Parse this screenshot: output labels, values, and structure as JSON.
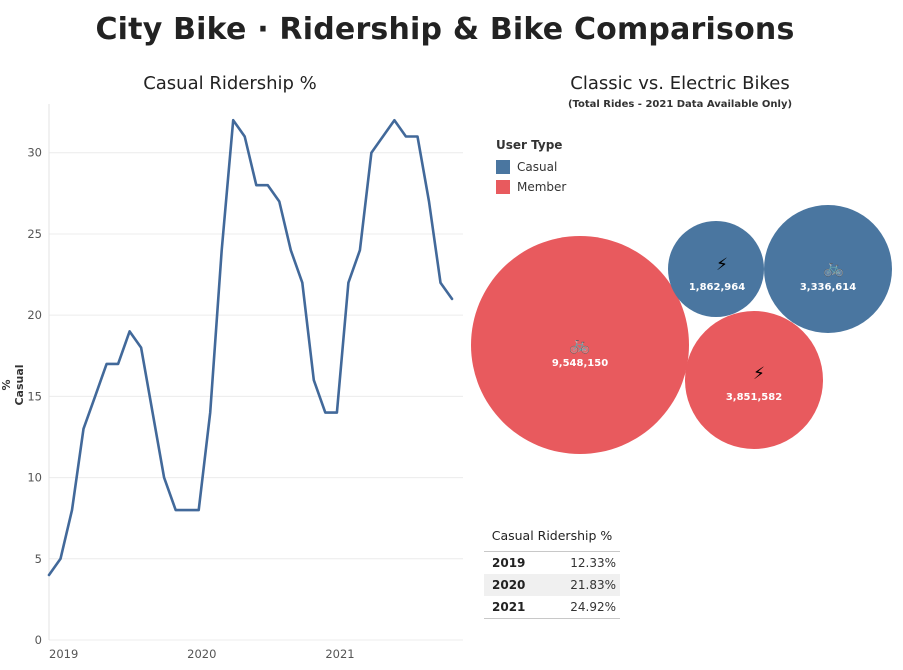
{
  "page": {
    "title": "City Bike · Ridership & Bike Comparisons"
  },
  "colors": {
    "casual": "#4a76a0",
    "member": "#e85a5e",
    "line": "#42699a",
    "grid": "#ececec"
  },
  "chart_data": [
    {
      "type": "line",
      "title": "Casual Ridership %",
      "ylabel": "% Casual",
      "xlabel": "",
      "ylim": [
        0,
        33
      ],
      "yticks": [
        0,
        5,
        10,
        15,
        20,
        25,
        30
      ],
      "xtick_labels": [
        "2019",
        "2020",
        "2021"
      ],
      "grid": true,
      "series": [
        {
          "x": [
            "2019-01",
            "2019-02",
            "2019-03",
            "2019-04",
            "2019-05",
            "2019-06",
            "2019-07",
            "2019-08",
            "2019-09",
            "2019-10",
            "2019-11",
            "2019-12",
            "2020-01",
            "2020-02",
            "2020-03",
            "2020-04",
            "2020-05",
            "2020-06",
            "2020-07",
            "2020-08",
            "2020-09",
            "2020-10",
            "2020-11",
            "2020-12",
            "2021-01",
            "2021-02",
            "2021-03",
            "2021-04",
            "2021-05",
            "2021-06",
            "2021-07",
            "2021-08",
            "2021-09",
            "2021-10",
            "2021-11",
            "2021-12"
          ],
          "values": [
            4,
            5,
            8,
            13,
            15,
            17,
            17,
            19,
            18,
            14,
            10,
            8,
            8,
            8,
            14,
            24,
            32,
            31,
            28,
            28,
            27,
            24,
            22,
            16,
            14,
            14,
            22,
            24,
            30,
            31,
            32,
            31,
            31,
            27,
            22,
            21
          ]
        }
      ]
    },
    {
      "type": "bubble",
      "title": "Classic vs. Electric Bikes",
      "subtitle": "(Total Rides - 2021 Data Available Only)",
      "legend": {
        "title": "User Type",
        "placement": "top-left",
        "entries": [
          {
            "label": "Casual",
            "color": "#4a76a0"
          },
          {
            "label": "Member",
            "color": "#e85a5e"
          }
        ]
      },
      "bubbles": [
        {
          "user_type": "Member",
          "bike_type": "classic",
          "icon": "bicycle-icon",
          "glyph": "🚲",
          "label": "9,548,150",
          "value": 9548150
        },
        {
          "user_type": "Casual",
          "bike_type": "electric",
          "icon": "lightning-icon",
          "glyph": "⚡",
          "label": "1,862,964",
          "value": 1862964
        },
        {
          "user_type": "Casual",
          "bike_type": "classic",
          "icon": "bicycle-icon",
          "glyph": "🚲",
          "label": "3,336,614",
          "value": 3336614
        },
        {
          "user_type": "Member",
          "bike_type": "electric",
          "icon": "lightning-icon",
          "glyph": "⚡",
          "label": "3,851,582",
          "value": 3851582
        }
      ]
    },
    {
      "type": "table",
      "title": "Casual Ridership %",
      "rows": [
        {
          "year": "2019",
          "value": "12.33%"
        },
        {
          "year": "2020",
          "value": "21.83%"
        },
        {
          "year": "2021",
          "value": "24.92%"
        }
      ]
    }
  ]
}
